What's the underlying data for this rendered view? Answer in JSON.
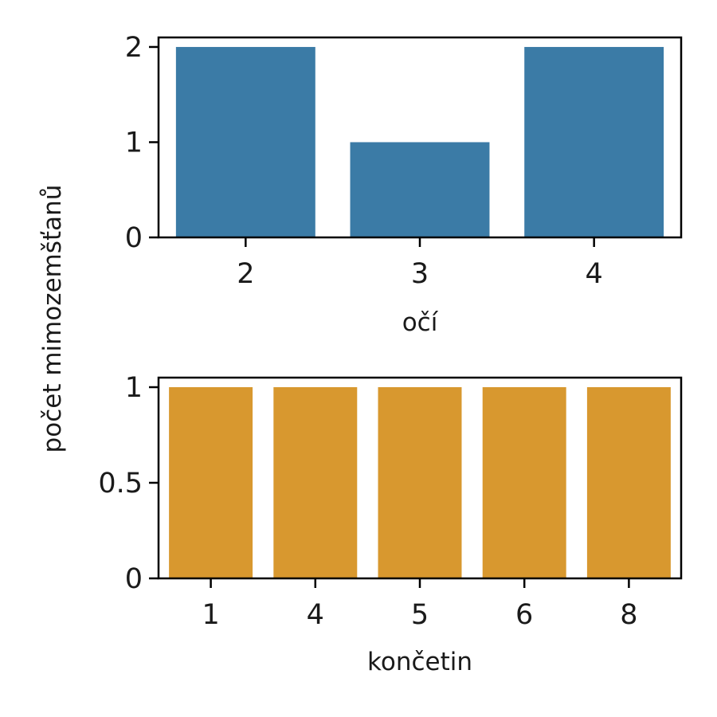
{
  "ylabel": "počet mimozemšťanů",
  "chart_data": [
    {
      "type": "bar",
      "xlabel": "očí",
      "ylabel": "počet mimozemšťanů",
      "categories": [
        "2",
        "3",
        "4"
      ],
      "values": [
        2,
        1,
        2
      ],
      "ylim": [
        0,
        2.1
      ],
      "yticks": [
        0,
        1,
        2
      ],
      "ytick_labels": [
        "0",
        "1",
        "2"
      ],
      "color": "#3b7ba6",
      "grid": false
    },
    {
      "type": "bar",
      "xlabel": "končetin",
      "ylabel": "počet mimozemšťanů",
      "categories": [
        "1",
        "4",
        "5",
        "6",
        "8"
      ],
      "values": [
        1,
        1,
        1,
        1,
        1
      ],
      "ylim": [
        0,
        1.05
      ],
      "yticks": [
        0,
        0.5,
        1
      ],
      "ytick_labels": [
        "0",
        "0.5",
        "1"
      ],
      "color": "#d8982f",
      "grid": false
    }
  ]
}
